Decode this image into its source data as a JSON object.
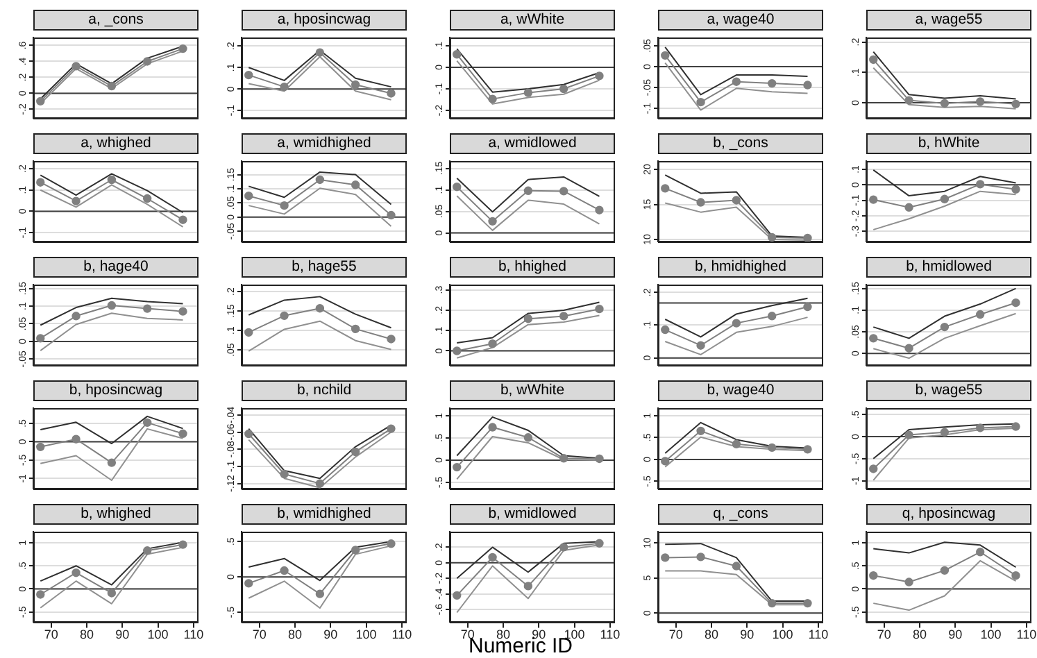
{
  "chart_data": [
    {
      "type": "line",
      "title": "a, _cons",
      "x": [
        67,
        77,
        87,
        97,
        107
      ],
      "xlim": [
        65,
        111
      ],
      "xticks": [
        70,
        80,
        90,
        100,
        110
      ],
      "ylim": [
        -0.31,
        0.7
      ],
      "yticks": [
        {
          "value": -0.2,
          "label": "-.2"
        },
        0,
        {
          "value": 0.2,
          "label": ".2"
        },
        {
          "value": 0.4,
          "label": ".4"
        },
        {
          "value": 0.6,
          "label": ".6"
        }
      ],
      "grid": "y",
      "tick_labels": "y",
      "marker": "circle",
      "ref_lines": [
        {
          "axis": "y",
          "value": 0,
          "color": "#404040"
        }
      ],
      "series": [
        {
          "color": "#808080",
          "values": [
            -0.1,
            0.34,
            0.09,
            0.4,
            0.56
          ]
        },
        {
          "color": "#303030",
          "marker": "none",
          "values": [
            -0.07,
            0.37,
            0.12,
            0.44,
            0.59
          ]
        },
        {
          "color": "#909090",
          "marker": "none",
          "values": [
            -0.13,
            0.31,
            0.06,
            0.37,
            0.53
          ]
        }
      ]
    },
    {
      "type": "line",
      "title": "a, hposincwag",
      "x": [
        67,
        77,
        87,
        97,
        107
      ],
      "xlim": [
        65,
        111
      ],
      "xticks": [
        70,
        80,
        90,
        100,
        110
      ],
      "ylim": [
        -0.135,
        0.24
      ],
      "yticks": [
        {
          "value": -0.1,
          "label": "-.1"
        },
        0,
        {
          "value": 0.1,
          "label": ".1"
        },
        {
          "value": 0.2,
          "label": ".2"
        }
      ],
      "grid": "y",
      "tick_labels": "y",
      "marker": "circle",
      "ref_lines": [
        {
          "axis": "y",
          "value": 0,
          "color": "#404040"
        }
      ],
      "series": [
        {
          "color": "#808080",
          "values": [
            0.065,
            0.01,
            0.17,
            0.02,
            -0.02
          ]
        },
        {
          "color": "#303030",
          "marker": "none",
          "values": [
            0.1,
            0.04,
            0.18,
            0.05,
            0.01
          ]
        },
        {
          "color": "#909090",
          "marker": "none",
          "values": [
            0.025,
            -0.01,
            0.15,
            -0.01,
            -0.05
          ]
        }
      ]
    },
    {
      "type": "line",
      "title": "a, wWhite",
      "x": [
        67,
        77,
        87,
        97,
        107
      ],
      "xlim": [
        65,
        111
      ],
      "xticks": [
        70,
        80,
        90,
        100,
        110
      ],
      "ylim": [
        -0.235,
        0.138
      ],
      "yticks": [
        {
          "value": -0.2,
          "label": "-.2"
        },
        {
          "value": -0.1,
          "label": "-.1"
        },
        0,
        {
          "value": 0.1,
          "label": ".1"
        }
      ],
      "grid": "y",
      "tick_labels": "y",
      "marker": "circle",
      "ref_lines": [
        {
          "axis": "y",
          "value": 0,
          "color": "#404040"
        }
      ],
      "series": [
        {
          "color": "#808080",
          "values": [
            0.06,
            -0.147,
            -0.118,
            -0.1,
            -0.04
          ]
        },
        {
          "color": "#303030",
          "marker": "none",
          "values": [
            0.085,
            -0.115,
            -0.1,
            -0.08,
            -0.025
          ]
        },
        {
          "color": "#909090",
          "marker": "none",
          "values": [
            0.03,
            -0.17,
            -0.14,
            -0.125,
            -0.06
          ]
        }
      ]
    },
    {
      "type": "line",
      "title": "a, wage40",
      "x": [
        67,
        77,
        87,
        97,
        107
      ],
      "xlim": [
        65,
        111
      ],
      "xticks": [
        70,
        80,
        90,
        100,
        110
      ],
      "ylim": [
        -0.123,
        0.07
      ],
      "yticks": [
        {
          "value": -0.1,
          "label": "-.1"
        },
        {
          "value": -0.05,
          "label": "-.05"
        },
        0,
        {
          "value": 0.05,
          "label": ".05"
        }
      ],
      "grid": "y",
      "tick_labels": "y",
      "marker": "circle",
      "ref_lines": [
        {
          "axis": "y",
          "value": 0,
          "color": "#404040"
        }
      ],
      "series": [
        {
          "color": "#808080",
          "values": [
            0.027,
            -0.085,
            -0.036,
            -0.04,
            -0.044
          ]
        },
        {
          "color": "#303030",
          "marker": "none",
          "values": [
            0.047,
            -0.067,
            -0.02,
            -0.02,
            -0.023
          ]
        },
        {
          "color": "#909090",
          "marker": "none",
          "values": [
            0.009,
            -0.104,
            -0.052,
            -0.06,
            -0.064
          ]
        }
      ]
    },
    {
      "type": "line",
      "title": "a, wage55",
      "x": [
        67,
        77,
        87,
        97,
        107
      ],
      "xlim": [
        65,
        111
      ],
      "xticks": [
        70,
        80,
        90,
        100,
        110
      ],
      "ylim": [
        -0.05,
        0.215
      ],
      "yticks": [
        0,
        {
          "value": 0.1,
          "label": ".1"
        },
        {
          "value": 0.2,
          "label": ".2"
        }
      ],
      "grid": "y",
      "tick_labels": "y",
      "marker": "circle",
      "ref_lines": [
        {
          "axis": "y",
          "value": 0,
          "color": "#404040"
        }
      ],
      "series": [
        {
          "color": "#808080",
          "values": [
            0.142,
            0.008,
            -0.002,
            0.004,
            -0.004
          ]
        },
        {
          "color": "#303030",
          "marker": "none",
          "values": [
            0.168,
            0.027,
            0.015,
            0.023,
            0.013
          ]
        },
        {
          "color": "#909090",
          "marker": "none",
          "values": [
            0.115,
            -0.006,
            -0.015,
            -0.012,
            -0.02
          ]
        }
      ]
    },
    {
      "type": "line",
      "title": "a, whighed",
      "x": [
        67,
        77,
        87,
        97,
        107
      ],
      "xlim": [
        65,
        111
      ],
      "xticks": [
        70,
        80,
        90,
        100,
        110
      ],
      "ylim": [
        -0.142,
        0.236
      ],
      "yticks": [
        {
          "value": -0.1,
          "label": "-.1"
        },
        0,
        {
          "value": 0.1,
          "label": ".1"
        },
        {
          "value": 0.2,
          "label": ".2"
        }
      ],
      "grid": "y",
      "tick_labels": "y",
      "marker": "circle",
      "ref_lines": [
        {
          "axis": "y",
          "value": 0,
          "color": "#404040"
        }
      ],
      "series": [
        {
          "color": "#808080",
          "values": [
            0.136,
            0.048,
            0.148,
            0.06,
            -0.04
          ]
        },
        {
          "color": "#303030",
          "marker": "none",
          "values": [
            0.17,
            0.076,
            0.176,
            0.097,
            -0.006
          ]
        },
        {
          "color": "#909090",
          "marker": "none",
          "values": [
            0.1,
            0.02,
            0.124,
            0.033,
            -0.073
          ]
        }
      ]
    },
    {
      "type": "line",
      "title": "a, wmidhighed",
      "x": [
        67,
        77,
        87,
        97,
        107
      ],
      "xlim": [
        65,
        111
      ],
      "xticks": [
        70,
        80,
        90,
        100,
        110
      ],
      "ylim": [
        -0.086,
        0.198
      ],
      "yticks": [
        {
          "value": -0.05,
          "label": "-.05"
        },
        0,
        {
          "value": 0.05,
          "label": ".05"
        },
        {
          "value": 0.1,
          "label": ".1"
        },
        {
          "value": 0.15,
          "label": ".15"
        }
      ],
      "grid": "y",
      "tick_labels": "y",
      "marker": "circle",
      "ref_lines": [
        {
          "axis": "y",
          "value": 0,
          "color": "#404040"
        }
      ],
      "series": [
        {
          "color": "#808080",
          "values": [
            0.075,
            0.041,
            0.132,
            0.114,
            0.007
          ]
        },
        {
          "color": "#303030",
          "marker": "none",
          "values": [
            0.109,
            0.07,
            0.159,
            0.15,
            0.045
          ]
        },
        {
          "color": "#909090",
          "marker": "none",
          "values": [
            0.041,
            0.011,
            0.102,
            0.08,
            -0.032
          ]
        }
      ]
    },
    {
      "type": "line",
      "title": "a, wmidlowed",
      "x": [
        67,
        77,
        87,
        97,
        107
      ],
      "xlim": [
        65,
        111
      ],
      "xticks": [
        70,
        80,
        90,
        100,
        110
      ],
      "ylim": [
        -0.02,
        0.167
      ],
      "yticks": [
        0,
        {
          "value": 0.05,
          "label": ".05"
        },
        {
          "value": 0.1,
          "label": ".1"
        },
        {
          "value": 0.15,
          "label": ".15"
        }
      ],
      "grid": "y",
      "tick_labels": "y",
      "marker": "circle",
      "ref_lines": [
        {
          "axis": "y",
          "value": 0,
          "color": "#404040"
        }
      ],
      "series": [
        {
          "color": "#808080",
          "values": [
            0.107,
            0.027,
            0.098,
            0.097,
            0.053
          ]
        },
        {
          "color": "#303030",
          "marker": "none",
          "values": [
            0.127,
            0.049,
            0.124,
            0.13,
            0.085
          ]
        },
        {
          "color": "#909090",
          "marker": "none",
          "values": [
            0.086,
            0.006,
            0.076,
            0.067,
            0.021
          ]
        }
      ]
    },
    {
      "type": "line",
      "title": "b, _cons",
      "x": [
        67,
        77,
        87,
        97,
        107
      ],
      "xlim": [
        65,
        111
      ],
      "xticks": [
        70,
        80,
        90,
        100,
        110
      ],
      "ylim": [
        9.7,
        21.2
      ],
      "yticks": [
        10,
        15,
        20
      ],
      "grid": "y",
      "tick_labels": "y",
      "marker": "circle",
      "series": [
        {
          "color": "#808080",
          "values": [
            17.3,
            15.3,
            15.6,
            10.3,
            10.2
          ]
        },
        {
          "color": "#303030",
          "marker": "none",
          "values": [
            19.2,
            16.6,
            16.8,
            10.5,
            10.3
          ]
        },
        {
          "color": "#909090",
          "marker": "none",
          "values": [
            15.2,
            13.9,
            14.6,
            10.0,
            9.9
          ]
        }
      ]
    },
    {
      "type": "line",
      "title": "b, hWhite",
      "x": [
        67,
        77,
        87,
        97,
        107
      ],
      "xlim": [
        65,
        111
      ],
      "xticks": [
        70,
        80,
        90,
        100,
        110
      ],
      "ylim": [
        -0.367,
        0.154
      ],
      "yticks": [
        {
          "value": -0.3,
          "label": "-.3"
        },
        {
          "value": -0.2,
          "label": "-.2"
        },
        {
          "value": -0.1,
          "label": "-.1"
        },
        0,
        {
          "value": 0.1,
          "label": ".1"
        }
      ],
      "grid": "y",
      "tick_labels": "y",
      "marker": "circle",
      "ref_lines": [
        {
          "axis": "y",
          "value": 0,
          "color": "#404040"
        }
      ],
      "series": [
        {
          "color": "#808080",
          "values": [
            -0.096,
            -0.146,
            -0.092,
            0.004,
            -0.029
          ]
        },
        {
          "color": "#303030",
          "marker": "none",
          "values": [
            0.096,
            -0.071,
            -0.042,
            0.054,
            0.013
          ]
        },
        {
          "color": "#909090",
          "marker": "none",
          "values": [
            -0.29,
            -0.22,
            -0.138,
            -0.042,
            -0.063
          ]
        }
      ]
    },
    {
      "type": "line",
      "title": "b, hage40",
      "x": [
        67,
        77,
        87,
        97,
        107
      ],
      "xlim": [
        65,
        111
      ],
      "xticks": [
        70,
        80,
        90,
        100,
        110
      ],
      "ylim": [
        -0.067,
        0.161
      ],
      "yticks": [
        {
          "value": -0.05,
          "label": "-.05"
        },
        0,
        {
          "value": 0.05,
          "label": ".05"
        },
        {
          "value": 0.1,
          "label": ".1"
        },
        {
          "value": 0.15,
          "label": ".15"
        }
      ],
      "grid": "y",
      "tick_labels": "y",
      "marker": "circle",
      "ref_lines": [
        {
          "axis": "y",
          "value": 0,
          "color": "#404040"
        }
      ],
      "series": [
        {
          "color": "#808080",
          "values": [
            0.009,
            0.072,
            0.102,
            0.093,
            0.085
          ]
        },
        {
          "color": "#303030",
          "marker": "none",
          "values": [
            0.046,
            0.096,
            0.122,
            0.113,
            0.107
          ]
        },
        {
          "color": "#909090",
          "marker": "none",
          "values": [
            -0.026,
            0.048,
            0.08,
            0.065,
            0.061
          ]
        }
      ]
    },
    {
      "type": "line",
      "title": "b, hage55",
      "x": [
        67,
        77,
        87,
        97,
        107
      ],
      "xlim": [
        65,
        111
      ],
      "xticks": [
        70,
        80,
        90,
        100,
        110
      ],
      "ylim": [
        0.011,
        0.218
      ],
      "yticks": [
        {
          "value": 0.05,
          "label": ".05"
        },
        {
          "value": 0.1,
          "label": ".1"
        },
        {
          "value": 0.15,
          "label": ".15"
        },
        {
          "value": 0.2,
          "label": ".2"
        }
      ],
      "grid": "y",
      "tick_labels": "y",
      "marker": "circle",
      "series": [
        {
          "color": "#808080",
          "values": [
            0.095,
            0.138,
            0.157,
            0.104,
            0.078
          ]
        },
        {
          "color": "#303030",
          "marker": "none",
          "values": [
            0.14,
            0.178,
            0.187,
            0.142,
            0.107
          ]
        },
        {
          "color": "#909090",
          "marker": "none",
          "values": [
            0.047,
            0.103,
            0.124,
            0.074,
            0.051
          ]
        }
      ]
    },
    {
      "type": "line",
      "title": "b, hhighed",
      "x": [
        67,
        77,
        87,
        97,
        107
      ],
      "xlim": [
        65,
        111
      ],
      "xticks": [
        70,
        80,
        90,
        100,
        110
      ],
      "ylim": [
        -0.07,
        0.326
      ],
      "yticks": [
        0,
        {
          "value": 0.1,
          "label": ".1"
        },
        {
          "value": 0.2,
          "label": ".2"
        },
        {
          "value": 0.3,
          "label": ".3"
        }
      ],
      "grid": "y",
      "tick_labels": "y",
      "marker": "circle",
      "ref_lines": [
        {
          "axis": "y",
          "value": 0,
          "color": "#404040"
        }
      ],
      "series": [
        {
          "color": "#808080",
          "values": [
            0,
            0.035,
            0.158,
            0.171,
            0.206
          ]
        },
        {
          "color": "#303030",
          "marker": "none",
          "values": [
            0.039,
            0.065,
            0.184,
            0.2,
            0.239
          ]
        },
        {
          "color": "#909090",
          "marker": "none",
          "values": [
            -0.035,
            0.016,
            0.129,
            0.142,
            0.174
          ]
        }
      ]
    },
    {
      "type": "line",
      "title": "b, hmidhighed",
      "x": [
        67,
        77,
        87,
        97,
        107
      ],
      "xlim": [
        65,
        111
      ],
      "xticks": [
        70,
        80,
        90,
        100,
        110
      ],
      "ylim": [
        -0.022,
        0.224
      ],
      "yticks": [
        0,
        {
          "value": 0.1,
          "label": ".1"
        },
        {
          "value": 0.2,
          "label": ".2"
        }
      ],
      "grid": "y",
      "tick_labels": "y",
      "marker": "circle",
      "ref_lines": [
        {
          "axis": "y",
          "value": 0,
          "color": "#404040"
        },
        {
          "axis": "y",
          "value": 0.168,
          "color": "#404040"
        }
      ],
      "series": [
        {
          "color": "#808080",
          "values": [
            0.086,
            0.038,
            0.106,
            0.128,
            0.156
          ]
        },
        {
          "color": "#303030",
          "marker": "none",
          "values": [
            0.118,
            0.064,
            0.134,
            0.16,
            0.182
          ]
        },
        {
          "color": "#909090",
          "marker": "none",
          "values": [
            0.05,
            0.01,
            0.078,
            0.096,
            0.124
          ]
        }
      ]
    },
    {
      "type": "line",
      "title": "b, hmidlowed",
      "x": [
        67,
        77,
        87,
        97,
        107
      ],
      "xlim": [
        65,
        111
      ],
      "xticks": [
        70,
        80,
        90,
        100,
        110
      ],
      "ylim": [
        -0.027,
        0.159
      ],
      "yticks": [
        0,
        {
          "value": 0.05,
          "label": ".05"
        },
        {
          "value": 0.1,
          "label": ".1"
        },
        {
          "value": 0.15,
          "label": ".15"
        }
      ],
      "grid": "y",
      "tick_labels": "y",
      "marker": "circle",
      "ref_lines": [
        {
          "axis": "y",
          "value": 0,
          "color": "#404040"
        }
      ],
      "series": [
        {
          "color": "#808080",
          "values": [
            0.035,
            0.012,
            0.061,
            0.09,
            0.117
          ]
        },
        {
          "color": "#303030",
          "marker": "none",
          "values": [
            0.061,
            0.035,
            0.086,
            0.114,
            0.15
          ]
        },
        {
          "color": "#909090",
          "marker": "none",
          "values": [
            0.011,
            -0.011,
            0.035,
            0.064,
            0.092
          ]
        }
      ]
    },
    {
      "type": "line",
      "title": "b, hposincwag",
      "x": [
        67,
        77,
        87,
        97,
        107
      ],
      "xlim": [
        65,
        111
      ],
      "xticks": [
        70,
        80,
        90,
        100,
        110
      ],
      "ylim": [
        -1.276,
        0.914
      ],
      "yticks": [
        -1,
        {
          "value": -0.5,
          "label": "-.5"
        },
        0,
        {
          "value": 0.5,
          "label": ".5"
        }
      ],
      "grid": "y",
      "tick_labels": "y",
      "marker": "circle",
      "ref_lines": [
        {
          "axis": "y",
          "value": 0,
          "color": "#404040"
        }
      ],
      "series": [
        {
          "color": "#808080",
          "values": [
            -0.14,
            0.07,
            -0.57,
            0.52,
            0.22
          ]
        },
        {
          "color": "#303030",
          "marker": "none",
          "values": [
            0.33,
            0.53,
            -0.05,
            0.69,
            0.36
          ]
        },
        {
          "color": "#909090",
          "marker": "none",
          "values": [
            -0.59,
            -0.38,
            -1.05,
            0.35,
            0.09
          ]
        }
      ]
    },
    {
      "type": "line",
      "title": "b, nchild",
      "x": [
        67,
        77,
        87,
        97,
        107
      ],
      "xlim": [
        65,
        111
      ],
      "xticks": [
        70,
        80,
        90,
        100,
        110
      ],
      "ylim": [
        -0.126,
        -0.032
      ],
      "yticks": [
        {
          "value": -0.12,
          "label": "-.12"
        },
        {
          "value": -0.1,
          "label": "-.1"
        },
        {
          "value": -0.08,
          "label": "-.08"
        },
        {
          "value": -0.06,
          "label": "-.06"
        },
        {
          "value": -0.04,
          "label": "-.04"
        }
      ],
      "grid": "y",
      "tick_labels": "y",
      "marker": "circle",
      "series": [
        {
          "color": "#808080",
          "values": [
            -0.062,
            -0.109,
            -0.12,
            -0.083,
            -0.056
          ]
        },
        {
          "color": "#303030",
          "marker": "none",
          "values": [
            -0.056,
            -0.105,
            -0.114,
            -0.077,
            -0.052
          ]
        },
        {
          "color": "#909090",
          "marker": "none",
          "values": [
            -0.069,
            -0.114,
            -0.125,
            -0.089,
            -0.06
          ]
        }
      ]
    },
    {
      "type": "line",
      "title": "b, wWhite",
      "x": [
        67,
        77,
        87,
        97,
        107
      ],
      "xlim": [
        65,
        111
      ],
      "xticks": [
        70,
        80,
        90,
        100,
        110
      ],
      "ylim": [
        -0.643,
        1.171
      ],
      "yticks": [
        {
          "value": -0.5,
          "label": "-.5"
        },
        0,
        {
          "value": 0.5,
          "label": ".5"
        },
        1
      ],
      "grid": "y",
      "tick_labels": "y",
      "marker": "circle",
      "ref_lines": [
        {
          "axis": "y",
          "value": 0,
          "color": "#404040"
        }
      ],
      "series": [
        {
          "color": "#808080",
          "values": [
            -0.16,
            0.74,
            0.51,
            0.04,
            0.03
          ]
        },
        {
          "color": "#303030",
          "marker": "none",
          "values": [
            0.1,
            0.97,
            0.67,
            0.1,
            0.04
          ]
        },
        {
          "color": "#909090",
          "marker": "none",
          "values": [
            -0.43,
            0.53,
            0.39,
            0.01,
            0
          ]
        }
      ]
    },
    {
      "type": "line",
      "title": "b, wage40",
      "x": [
        67,
        77,
        87,
        97,
        107
      ],
      "xlim": [
        65,
        111
      ],
      "xticks": [
        70,
        80,
        90,
        100,
        110
      ],
      "ylim": [
        -0.667,
        1.17
      ],
      "yticks": [
        {
          "value": -0.5,
          "label": "-.5"
        },
        0,
        {
          "value": 0.5,
          "label": ".5"
        },
        1
      ],
      "grid": "y",
      "tick_labels": "y",
      "marker": "circle",
      "ref_lines": [
        {
          "axis": "y",
          "value": 0,
          "color": "#404040"
        }
      ],
      "series": [
        {
          "color": "#808080",
          "values": [
            -0.04,
            0.65,
            0.35,
            0.27,
            0.23
          ]
        },
        {
          "color": "#303030",
          "marker": "none",
          "values": [
            0.14,
            0.84,
            0.45,
            0.3,
            0.26
          ]
        },
        {
          "color": "#909090",
          "marker": "none",
          "values": [
            -0.17,
            0.51,
            0.29,
            0.23,
            0.2
          ]
        }
      ]
    },
    {
      "type": "line",
      "title": "b, wage55",
      "x": [
        67,
        77,
        87,
        97,
        107
      ],
      "xlim": [
        65,
        111
      ],
      "xticks": [
        70,
        80,
        90,
        100,
        110
      ],
      "ylim": [
        -1.18,
        0.648
      ],
      "yticks": [
        -1,
        {
          "value": -0.5,
          "label": "-.5"
        },
        0,
        {
          "value": 0.5,
          "label": ".5"
        }
      ],
      "grid": "y",
      "tick_labels": "y",
      "marker": "circle",
      "ref_lines": [
        {
          "axis": "y",
          "value": 0,
          "color": "#404040"
        }
      ],
      "series": [
        {
          "color": "#808080",
          "values": [
            -0.73,
            0.04,
            0.1,
            0.2,
            0.23
          ]
        },
        {
          "color": "#303030",
          "marker": "none",
          "values": [
            -0.5,
            0.16,
            0.22,
            0.27,
            0.29
          ]
        },
        {
          "color": "#909090",
          "marker": "none",
          "values": [
            -0.99,
            -0.03,
            0.04,
            0.16,
            0.19
          ]
        }
      ]
    },
    {
      "type": "line",
      "title": "b, whighed",
      "x": [
        67,
        77,
        87,
        97,
        107
      ],
      "xlim": [
        65,
        111
      ],
      "xticks": [
        70,
        80,
        90,
        100,
        110
      ],
      "ylim": [
        -0.72,
        1.24
      ],
      "yticks": [
        {
          "value": -0.5,
          "label": "-.5"
        },
        0,
        {
          "value": 0.5,
          "label": ".5"
        },
        1
      ],
      "grid": "y",
      "marker": "circle",
      "ref_lines": [
        {
          "axis": "y",
          "value": 0,
          "color": "#404040"
        }
      ],
      "series": [
        {
          "color": "#808080",
          "values": [
            -0.12,
            0.35,
            -0.09,
            0.83,
            0.96
          ]
        },
        {
          "color": "#303030",
          "marker": "none",
          "values": [
            0.17,
            0.5,
            0.09,
            0.87,
            1.01
          ]
        },
        {
          "color": "#909090",
          "marker": "none",
          "values": [
            -0.41,
            0.17,
            -0.32,
            0.75,
            0.9
          ]
        }
      ]
    },
    {
      "type": "line",
      "title": "b, wmidhighed",
      "x": [
        67,
        77,
        87,
        97,
        107
      ],
      "xlim": [
        65,
        111
      ],
      "xticks": [
        70,
        80,
        90,
        100,
        110
      ],
      "ylim": [
        -0.64,
        0.64
      ],
      "yticks": [
        {
          "value": -0.5,
          "label": "-.5"
        },
        0,
        {
          "value": 0.5,
          "label": ".5"
        }
      ],
      "grid": "y",
      "marker": "circle",
      "ref_lines": [
        {
          "axis": "y",
          "value": 0,
          "color": "#404040"
        }
      ],
      "series": [
        {
          "color": "#808080",
          "values": [
            -0.09,
            0.09,
            -0.24,
            0.38,
            0.47
          ]
        },
        {
          "color": "#303030",
          "marker": "none",
          "values": [
            0.14,
            0.26,
            -0.05,
            0.42,
            0.5
          ]
        },
        {
          "color": "#909090",
          "marker": "none",
          "values": [
            -0.3,
            -0.06,
            -0.44,
            0.32,
            0.44
          ]
        }
      ]
    },
    {
      "type": "line",
      "title": "b, wmidlowed",
      "xlabel": "Numeric ID",
      "x": [
        67,
        77,
        87,
        97,
        107
      ],
      "xlim": [
        65,
        111
      ],
      "xticks": [
        70,
        80,
        90,
        100,
        110
      ],
      "ylim": [
        -0.764,
        0.4
      ],
      "yticks": [
        {
          "value": -0.6,
          "label": "-.6"
        },
        {
          "value": -0.4,
          "label": "-.4"
        },
        {
          "value": -0.2,
          "label": "-.2"
        },
        0,
        {
          "value": 0.2,
          "label": ".2"
        }
      ],
      "grid": "y",
      "marker": "circle",
      "ref_lines": [
        {
          "axis": "y",
          "value": 0,
          "color": "#404040"
        }
      ],
      "series": [
        {
          "color": "#808080",
          "values": [
            -0.42,
            0.07,
            -0.3,
            0.2,
            0.25
          ]
        },
        {
          "color": "#303030",
          "marker": "none",
          "values": [
            -0.2,
            0.2,
            -0.12,
            0.25,
            0.27
          ]
        },
        {
          "color": "#909090",
          "marker": "none",
          "values": [
            -0.64,
            -0.04,
            -0.46,
            0.16,
            0.23
          ]
        }
      ]
    },
    {
      "type": "line",
      "title": "q, _cons",
      "x": [
        67,
        77,
        87,
        97,
        107
      ],
      "xlim": [
        65,
        111
      ],
      "xticks": [
        70,
        80,
        90,
        100,
        110
      ],
      "ylim": [
        -1.3,
        11.6
      ],
      "yticks": [
        0,
        5,
        10
      ],
      "grid": "y",
      "marker": "circle",
      "ref_lines": [
        {
          "axis": "y",
          "value": 0,
          "color": "#404040"
        }
      ],
      "series": [
        {
          "color": "#808080",
          "values": [
            7.9,
            8.0,
            6.7,
            1.4,
            1.4
          ]
        },
        {
          "color": "#303030",
          "marker": "none",
          "values": [
            9.8,
            9.9,
            7.9,
            1.7,
            1.7
          ]
        },
        {
          "color": "#909090",
          "marker": "none",
          "values": [
            6.0,
            6.0,
            5.5,
            1.2,
            1.2
          ]
        }
      ]
    },
    {
      "type": "line",
      "title": "q, hposincwag",
      "x": [
        67,
        77,
        87,
        97,
        107
      ],
      "xlim": [
        65,
        111
      ],
      "xticks": [
        70,
        80,
        90,
        100,
        110
      ],
      "ylim": [
        -0.72,
        1.24
      ],
      "yticks": [
        {
          "value": -0.5,
          "label": "-.5"
        },
        0,
        {
          "value": 0.5,
          "label": ".5"
        },
        1
      ],
      "grid": "y",
      "marker": "circle",
      "ref_lines": [
        {
          "axis": "y",
          "value": 0,
          "color": "#404040"
        }
      ],
      "series": [
        {
          "color": "#808080",
          "values": [
            0.29,
            0.15,
            0.4,
            0.8,
            0.29
          ]
        },
        {
          "color": "#303030",
          "marker": "none",
          "values": [
            0.87,
            0.78,
            1.01,
            0.95,
            0.47
          ]
        },
        {
          "color": "#909090",
          "marker": "none",
          "values": [
            -0.31,
            -0.46,
            -0.15,
            0.61,
            0.17
          ]
        }
      ]
    }
  ]
}
